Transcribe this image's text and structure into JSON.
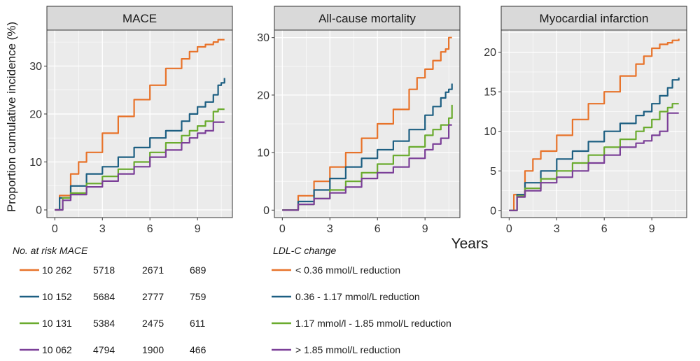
{
  "chart_data": [
    {
      "type": "line",
      "title": "MACE",
      "xlabel": "Years",
      "ylabel": "Proportion cumulative incidence (%)",
      "x_ticks": [
        0,
        3,
        6,
        9
      ],
      "y_ticks": [
        0,
        10,
        20,
        30
      ],
      "xlim": [
        -0.5,
        11.2
      ],
      "ylim": [
        -1.6,
        37.5
      ],
      "grid": true,
      "series": [
        {
          "name": "< 0.36 mmol/L reduction",
          "color": "#e8732a",
          "x": [
            0,
            0.3,
            1,
            1.5,
            2,
            3,
            4,
            5,
            6,
            7,
            8,
            8.5,
            9,
            9.5,
            10,
            10.3,
            10.7
          ],
          "y": [
            0,
            3,
            7.5,
            10,
            12,
            16,
            19.5,
            23,
            26,
            29.5,
            31.5,
            33,
            34,
            34.5,
            35,
            35.5,
            35.5
          ]
        },
        {
          "name": "0.36 - 1.17 mmol/L reduction",
          "color": "#1d5f82",
          "x": [
            0,
            0.3,
            1,
            2,
            3,
            4,
            5,
            6,
            7,
            8,
            8.5,
            9,
            9.5,
            10,
            10.3,
            10.5,
            10.7
          ],
          "y": [
            0,
            2.5,
            5,
            7.5,
            9,
            11,
            13,
            15,
            16.5,
            18.5,
            20,
            21.5,
            22.5,
            24,
            26,
            26.5,
            27.5
          ]
        },
        {
          "name": "1.17 mmol/l - 1.85 mmol/L reduction",
          "color": "#6aab2e",
          "x": [
            0,
            0.5,
            1,
            2,
            3,
            4,
            5,
            6,
            7,
            8,
            8.5,
            9,
            9.5,
            10,
            10.3,
            10.7
          ],
          "y": [
            0,
            2.5,
            3.5,
            5.5,
            7,
            8.5,
            10,
            12,
            14,
            15.5,
            16.5,
            17.5,
            18.5,
            20.5,
            21,
            21
          ]
        },
        {
          "name": "> 1.85 mmol/L reduction",
          "color": "#7b3f98",
          "x": [
            0,
            0.5,
            1,
            2,
            3,
            4,
            5,
            6,
            7,
            8,
            8.5,
            9,
            9.5,
            10,
            10.7
          ],
          "y": [
            0,
            2,
            3.2,
            4.8,
            6,
            7.5,
            9,
            11,
            12.5,
            14,
            15,
            16,
            16.5,
            18.3,
            18.3
          ]
        }
      ]
    },
    {
      "type": "line",
      "title": "All-cause mortality",
      "xlabel": "Years",
      "ylabel": "",
      "x_ticks": [
        0,
        3,
        6,
        9
      ],
      "y_ticks": [
        0,
        10,
        20,
        30
      ],
      "xlim": [
        -0.5,
        11.2
      ],
      "ylim": [
        -1.3,
        31.3
      ],
      "grid": true,
      "series": [
        {
          "name": "< 0.36 mmol/L reduction",
          "color": "#e8732a",
          "x": [
            0,
            1,
            2,
            3,
            4,
            5,
            6,
            7,
            8,
            8.5,
            9,
            9.5,
            10,
            10.3,
            10.5,
            10.7
          ],
          "y": [
            0,
            2.5,
            5,
            7.5,
            10,
            12.5,
            15,
            17.5,
            21,
            23,
            24.5,
            26,
            27.5,
            28,
            30,
            30
          ]
        },
        {
          "name": "0.36 - 1.17 mmol/L reduction",
          "color": "#1d5f82",
          "x": [
            0,
            1,
            2,
            3,
            4,
            5,
            6,
            7,
            8,
            9,
            9.5,
            10,
            10.3,
            10.5,
            10.7
          ],
          "y": [
            0,
            1.5,
            3.5,
            5.5,
            7.5,
            9,
            10.5,
            12,
            14,
            16.5,
            18,
            19.5,
            20.5,
            21,
            22
          ]
        },
        {
          "name": "1.17 mmol/l - 1.85 mmol/L reduction",
          "color": "#6aab2e",
          "x": [
            0,
            1,
            2,
            3,
            4,
            5,
            6,
            7,
            8,
            9,
            9.5,
            10,
            10.5,
            10.7
          ],
          "y": [
            0,
            1,
            2,
            3.5,
            5,
            6.5,
            8,
            9.5,
            11,
            13,
            14,
            14.8,
            16,
            18.3
          ]
        },
        {
          "name": "> 1.85 mmol/L reduction",
          "color": "#7b3f98",
          "x": [
            0,
            1,
            2,
            3,
            4,
            5,
            6,
            7,
            8,
            9,
            9.5,
            10,
            10.5,
            10.7
          ],
          "y": [
            0,
            1,
            2,
            3,
            4,
            5.5,
            6.5,
            7.5,
            9,
            10.5,
            11.5,
            12.5,
            14.8,
            14.8
          ]
        }
      ]
    },
    {
      "type": "line",
      "title": "Myocardial infarction",
      "xlabel": "Years",
      "ylabel": "",
      "x_ticks": [
        0,
        3,
        6,
        9
      ],
      "y_ticks": [
        0,
        5,
        10,
        15,
        20
      ],
      "xlim": [
        -0.5,
        11.2
      ],
      "ylim": [
        -0.9,
        22.8
      ],
      "grid": true,
      "series": [
        {
          "name": "< 0.36 mmol/L reduction",
          "color": "#e8732a",
          "x": [
            0,
            0.3,
            1,
            1.5,
            2,
            3,
            4,
            5,
            6,
            7,
            8,
            8.5,
            9,
            9.5,
            10,
            10.3,
            10.7
          ],
          "y": [
            0,
            2,
            5,
            6.5,
            7.5,
            9.5,
            11.5,
            13.5,
            15,
            17,
            18.5,
            19.5,
            20.5,
            21,
            21.2,
            21.5,
            21.7
          ]
        },
        {
          "name": "0.36 - 1.17 mmol/L reduction",
          "color": "#1d5f82",
          "x": [
            0,
            0.5,
            1,
            2,
            3,
            4,
            5,
            6,
            7,
            8,
            8.5,
            9,
            9.5,
            10,
            10.3,
            10.7
          ],
          "y": [
            0,
            2,
            3.5,
            5,
            6.5,
            7.5,
            8.7,
            10,
            11,
            12,
            12.5,
            13.5,
            14.5,
            15.5,
            16.5,
            16.8
          ]
        },
        {
          "name": "1.17 mmol/l - 1.85 mmol/L reduction",
          "color": "#6aab2e",
          "x": [
            0,
            0.5,
            1,
            2,
            3,
            4,
            5,
            6,
            7,
            8,
            8.5,
            9,
            9.5,
            10,
            10.3,
            10.7
          ],
          "y": [
            0,
            1.8,
            2.8,
            4,
            5,
            6,
            7,
            8,
            9,
            10,
            10.5,
            11.5,
            12.5,
            13,
            13.5,
            13.5
          ]
        },
        {
          "name": "> 1.85 mmol/L reduction",
          "color": "#7b3f98",
          "x": [
            0,
            0.5,
            1,
            2,
            3,
            4,
            5,
            6,
            7,
            8,
            8.5,
            9,
            9.5,
            10,
            10.7
          ],
          "y": [
            0,
            1.7,
            2.5,
            3.5,
            4.2,
            5,
            6,
            7,
            8,
            8.5,
            8.8,
            9.5,
            10,
            12.3,
            12.3
          ]
        }
      ]
    }
  ],
  "risk_table": {
    "header": "No. at risk MACE",
    "rows": [
      {
        "color": "#e8732a",
        "values": [
          "10 262",
          "5718",
          "2671",
          "689"
        ]
      },
      {
        "color": "#1d5f82",
        "values": [
          "10 152",
          "5684",
          "2777",
          "759"
        ]
      },
      {
        "color": "#6aab2e",
        "values": [
          "10 131",
          "5384",
          "2475",
          "611"
        ]
      },
      {
        "color": "#7b3f98",
        "values": [
          "10 062",
          "4794",
          "1900",
          "466"
        ]
      }
    ]
  },
  "legend": {
    "title": "LDL-C change",
    "items": [
      {
        "label": "< 0.36 mmol/L reduction",
        "color": "#e8732a"
      },
      {
        "label": "0.36 - 1.17 mmol/L reduction",
        "color": "#1d5f82"
      },
      {
        "label": "1.17 mmol/l - 1.85 mmol/L reduction",
        "color": "#6aab2e"
      },
      {
        "label": "> 1.85 mmol/L reduction",
        "color": "#7b3f98"
      }
    ]
  },
  "colors": {
    "panel_background": "#ebebeb",
    "strip_background": "#d9d9d9",
    "grid": "#ffffff",
    "axis": "#333333"
  }
}
